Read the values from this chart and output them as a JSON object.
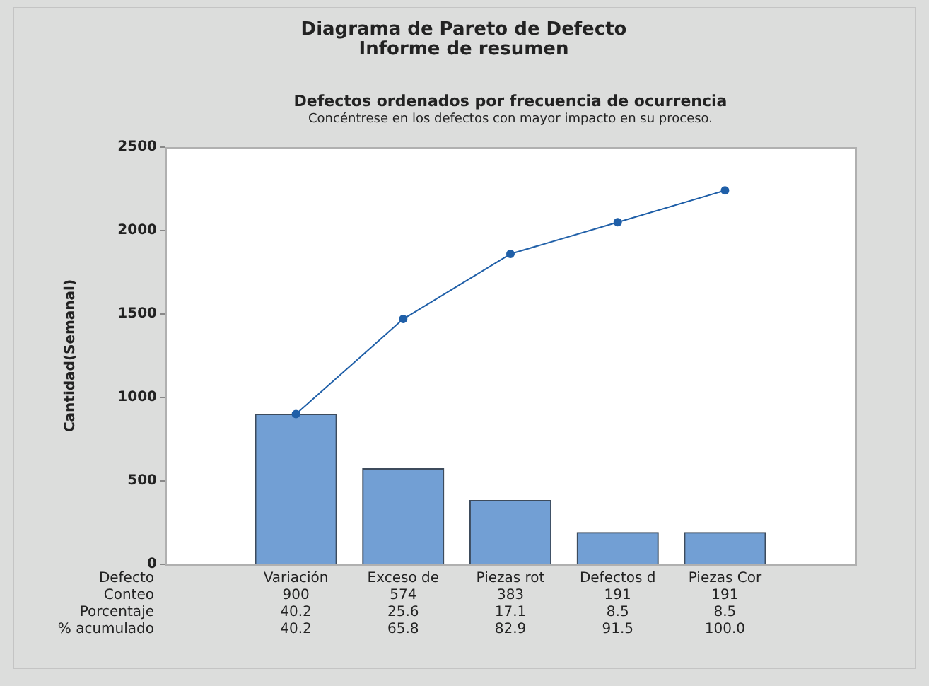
{
  "chart_data": {
    "type": "bar",
    "title": "Diagrama de Pareto de Defecto",
    "subtitle": "Informe de resumen",
    "annotations": [
      "Defectos ordenados por frecuencia de ocurrencia",
      "Concéntrese en los defectos con mayor impacto en su proceso.",
      "Conteo",
      "Porcentaje",
      "40.2",
      "25.6",
      "17.1",
      "8.5",
      "8.5",
      "% acumulado",
      "40.2",
      "65.8",
      "82.9",
      "91.5",
      "100.0"
    ],
    "xlabel": "Defecto",
    "ylabel": "Cantidad(Semanal)",
    "categories": [
      "Variación",
      "Exceso de",
      "Piezas rot",
      "Defectos d",
      "Piezas Cor"
    ],
    "series": [
      {
        "color": "#729fd4",
        "values": [
          900,
          574,
          383,
          191,
          191
        ],
        "value_labels": [
          "900",
          "574",
          "383",
          "191",
          "191"
        ]
      },
      {
        "type": "line",
        "color": "#1f5fa8",
        "values": [
          900,
          1470,
          1860,
          2050,
          2240
        ]
      }
    ],
    "marker": "circle",
    "ylim": [
      0,
      2500
    ],
    "yticks": [
      0,
      500,
      1000,
      1500,
      2000,
      2500
    ],
    "grid": false
  }
}
